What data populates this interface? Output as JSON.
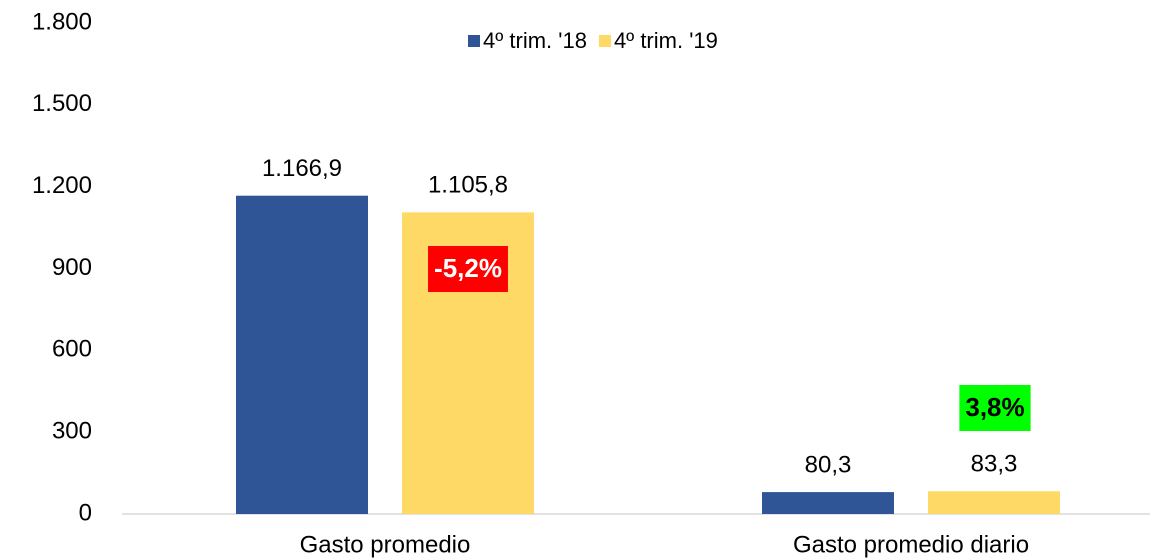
{
  "chart_data": {
    "type": "bar",
    "categories": [
      "Gasto promedio",
      "Gasto promedio diario"
    ],
    "series": [
      {
        "name": "4º trim. '18",
        "color": "#2f5597",
        "values": [
          1166.9,
          80.3
        ],
        "value_labels": [
          "1.166,9",
          "80,3"
        ]
      },
      {
        "name": "4º trim. '19",
        "color": "#ffd966",
        "values": [
          1105.8,
          83.3
        ],
        "value_labels": [
          "1.105,8",
          "83,3"
        ]
      }
    ],
    "ylim": [
      0,
      1800
    ],
    "yticks": [
      0,
      300,
      600,
      900,
      {
        "value": 1200,
        "label": "1.200"
      },
      {
        "value": 1500,
        "label": "1.500"
      },
      {
        "value": 1800,
        "label": "1.800"
      }
    ],
    "legend": "top",
    "annotations": [
      {
        "text": "-5,2%",
        "color": "#ff0000",
        "text_color": "#ffffff"
      },
      {
        "text": "3,8%",
        "color": "#00ff00",
        "text_color": "#000000"
      }
    ]
  }
}
